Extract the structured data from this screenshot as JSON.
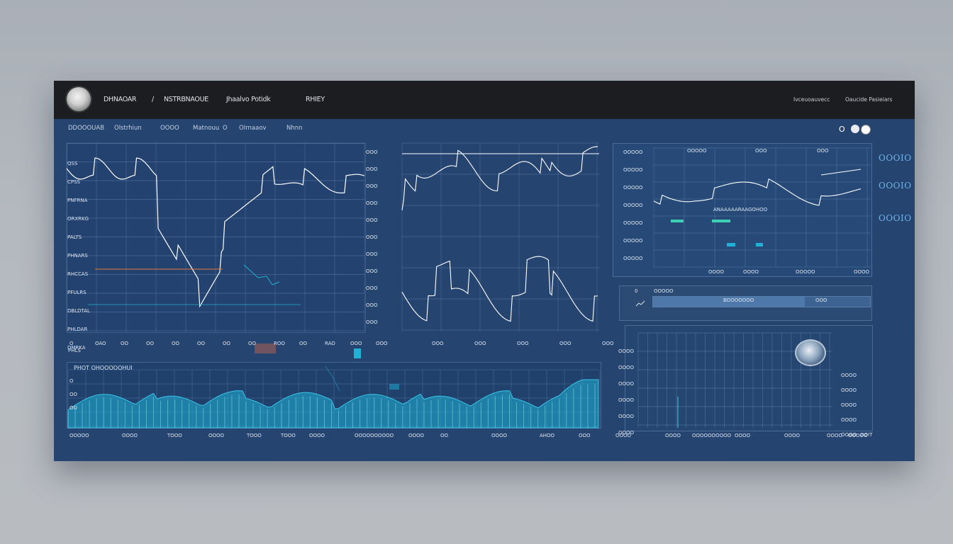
{
  "topbar": {
    "brand": "DHNAOAR",
    "crumb_sep": "/",
    "crumb_1": "NSTRBNAOUE",
    "crumb_2": "Jhaalvo Potidk",
    "crumb_3": "RHIEY",
    "right_1": "Ivceuoauvecc",
    "right_2": "Oaucide Pasieiars"
  },
  "subnav": [
    "DDOOOUAB",
    "Olstrhiun",
    "OOOO",
    "Matnouu",
    "O",
    "OIrnaaov",
    "Nhnn"
  ],
  "window_controls": [
    "O",
    "O",
    "O"
  ],
  "main_chart": {
    "y_labels_left": [
      "QSS",
      "CPSS",
      "PNFRNA",
      "ORXRKG",
      "PALTS",
      "PHNARS",
      "RHCCAS",
      "PFULRS",
      "DBLDTAL",
      "PHLDAR",
      "DMRKA"
    ],
    "y_labels_right": [
      "OOO",
      "OOO",
      "OOO",
      "OOO",
      "OOO",
      "OOO",
      "OOO",
      "OOO",
      "OOO",
      "OOO",
      "OOO"
    ],
    "x_labels": [
      "O",
      "OAO",
      "OO",
      "OO",
      "OO",
      "OO",
      "OO",
      "OO",
      "ROO",
      "OO",
      "RAO",
      "OOO",
      "OOO"
    ],
    "x_extra": "PHLS"
  },
  "right_top_chart": {
    "x_labels": [
      "OOO",
      "OOO",
      "OOO",
      "OOO",
      "OOO"
    ]
  },
  "side_chart": {
    "y_labels": [
      "OOOOO",
      "OOOOO",
      "OOOOO",
      "OOOOO",
      "OOOOO",
      "OOOOO",
      "OOOOO"
    ],
    "top_labels": [
      "OOOOO",
      "OOO",
      "OOO"
    ],
    "mid_label": "ANAAAAARAAGOHOO",
    "x_labels": [
      "OOOO",
      "OOOO",
      "OOOOO",
      "OOOO"
    ],
    "big_values": [
      "OOOIO",
      "OOOIO",
      "OOOIO"
    ]
  },
  "info_bar": {
    "label": "OOOOO",
    "sub_label": "BOOOOOOO",
    "tag": "OOO"
  },
  "volume_chart": {
    "title": "PHOT OHOOOOOHUI",
    "y_labels": [
      "O",
      "OO",
      "OO"
    ],
    "x_labels": [
      "OOOOO",
      "OOOO",
      "TOOO",
      "OOOO",
      "TOOO",
      "TOOO",
      "OOOO",
      "OOOOOOOOOO",
      "OOOO",
      "OO",
      "OOOO",
      "AHOO",
      "OOO"
    ]
  },
  "heat_chart": {
    "y_labels": [
      "OOOO",
      "OOOO",
      "OOOO",
      "OOOO",
      "OOOO",
      "OOOO"
    ],
    "right_labels": [
      "OOOO",
      "OOOO",
      "OOOO",
      "OOOO",
      "OOOO"
    ],
    "x_labels": [
      "OOOO",
      "OOOO",
      "OOOOOOOOOO",
      "OOOO",
      "OOOO",
      "OOOO",
      "OOOOO"
    ],
    "corner": "OOIT"
  },
  "colors": {
    "background": "#254470",
    "topbar": "#1c1d20",
    "line": "#ffffff",
    "accent": "#1fb2d6",
    "accent_alt": "#3fd1b5",
    "marker": "#e07a3a"
  }
}
